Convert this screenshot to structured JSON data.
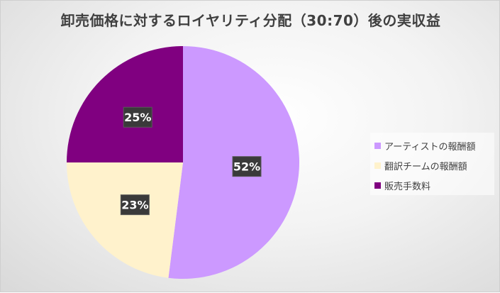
{
  "chart_data": {
    "type": "pie",
    "title": "卸売価格に対するロイヤリティ分配（30:70）後の実収益",
    "categories": [
      "アーティストの報酬額",
      "翻訳チームの報酬額",
      "販売手数料"
    ],
    "values": [
      52,
      23,
      25
    ],
    "data_labels": [
      "52%",
      "23%",
      "25%"
    ],
    "colors": [
      "#cc99ff",
      "#fff2cc",
      "#800080"
    ],
    "start_angle_deg": 0,
    "direction": "clockwise",
    "legend_position": "right"
  }
}
